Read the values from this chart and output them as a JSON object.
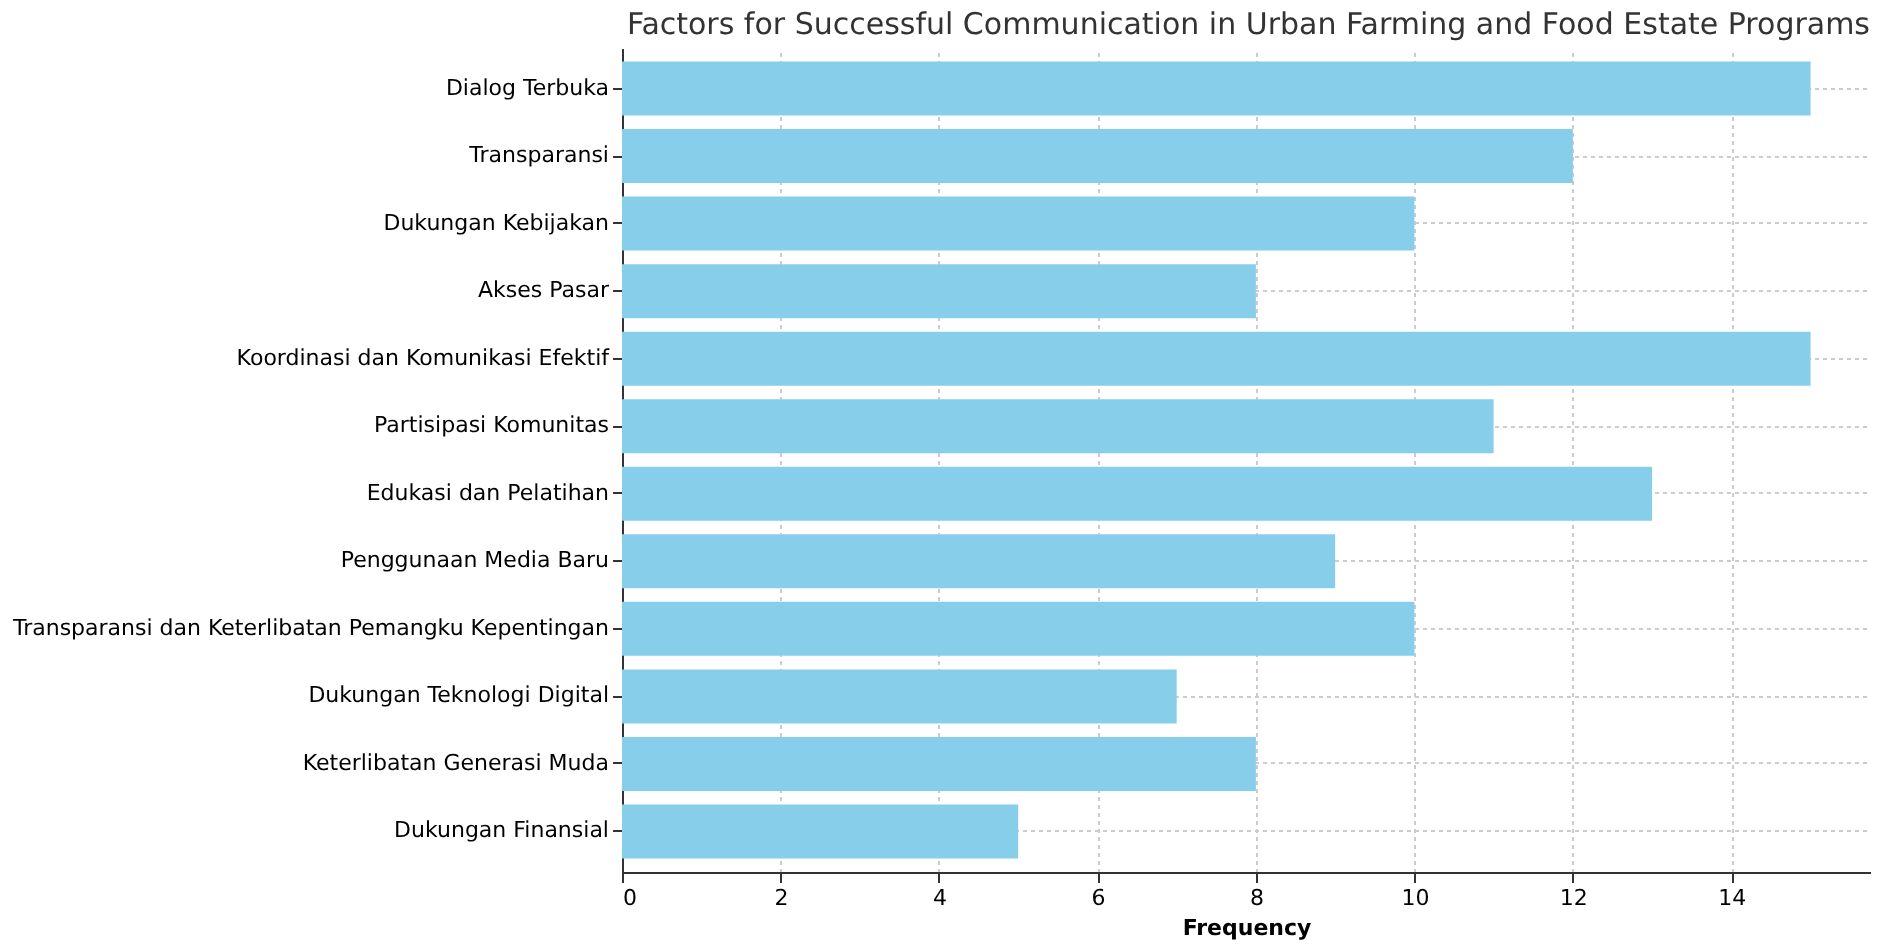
{
  "chart_data": {
    "type": "bar",
    "orientation": "horizontal",
    "title": "Factors for Successful Communication in Urban Farming and Food Estate Programs",
    "xlabel": "Frequency",
    "categories": [
      "Dialog Terbuka",
      "Transparansi",
      "Dukungan Kebijakan",
      "Akses Pasar",
      "Koordinasi dan Komunikasi Efektif",
      "Partisipasi Komunitas",
      "Edukasi dan Pelatihan",
      "Penggunaan Media Baru",
      "Transparansi dan Keterlibatan Pemangku Kepentingan",
      "Dukungan Teknologi Digital",
      "Keterlibatan Generasi Muda",
      "Dukungan Finansial"
    ],
    "values": [
      15,
      12,
      10,
      8,
      15,
      11,
      13,
      9,
      10,
      7,
      8,
      5
    ],
    "color": "#87ceeb",
    "xlim": [
      0,
      15.75
    ],
    "xticks": [
      0,
      2,
      4,
      6,
      8,
      10,
      12,
      14
    ],
    "grid": true
  }
}
